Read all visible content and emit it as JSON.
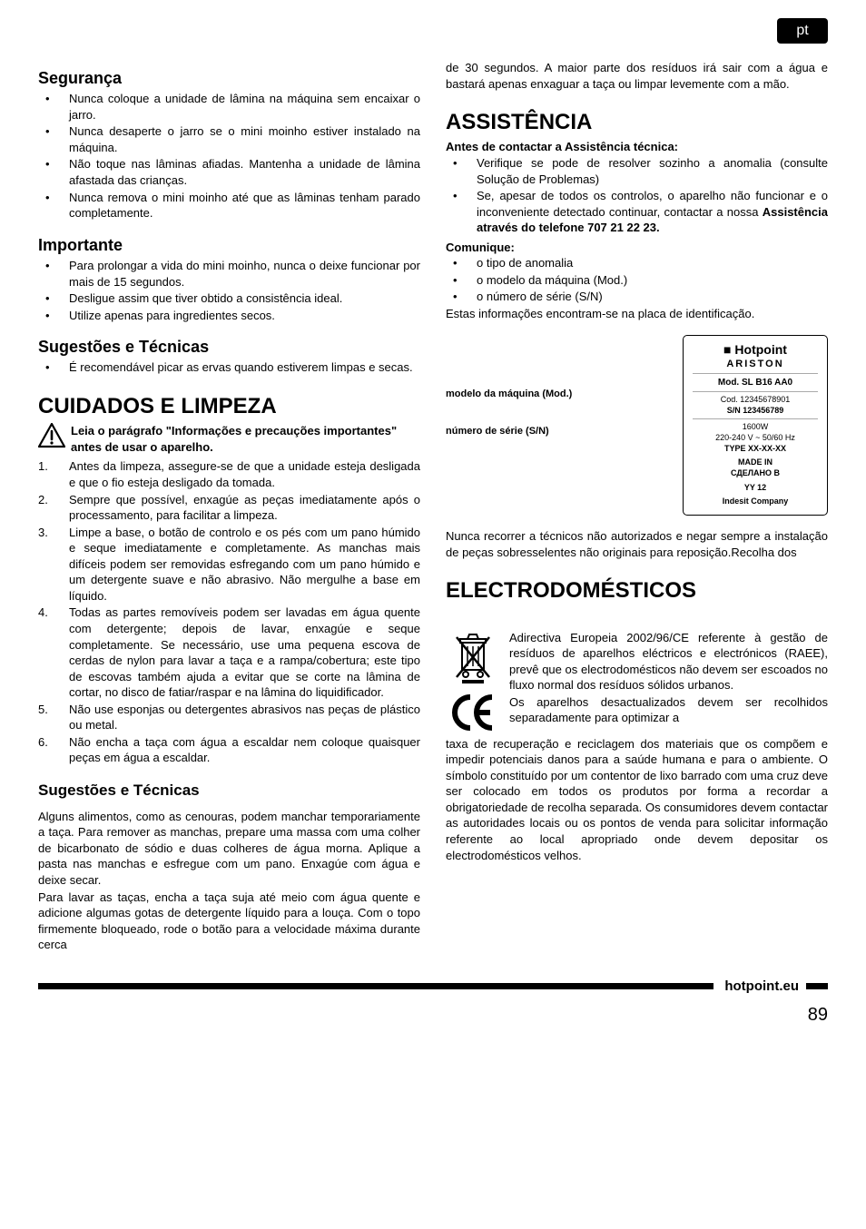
{
  "lang_tab": "pt",
  "left": {
    "seguranca_h": "Segurança",
    "seguranca_items": [
      "Nunca coloque a unidade de lâmina na máquina sem encaixar o jarro.",
      "Nunca desaperte o jarro se o mini moinho estiver instalado na máquina.",
      "Não toque nas lâminas afiadas. Mantenha a unidade de lâmina afastada das crianças.",
      "Nunca remova o mini moinho até que as lâminas tenham parado completamente."
    ],
    "importante_h": "Importante",
    "importante_items": [
      "Para prolongar a vida do mini moinho, nunca o deixe funcionar por mais de 15 segundos.",
      "Desligue assim que tiver obtido a consistência ideal.",
      "Utilize apenas para ingredientes secos."
    ],
    "sug1_h": "Sugestões e Técnicas",
    "sug1_items": [
      "É recomendável picar as ervas quando estiverem limpas e secas."
    ],
    "cuidados_h": "CUIDADOS E LIMPEZA",
    "warn_text": "Leia o parágrafo \"Informações e precauções importantes\" antes de usar o aparelho.",
    "cuidados_list": [
      "Antes da limpeza, assegure-se de que a unidade esteja desligada e que o fio esteja desligado da tomada.",
      "Sempre que possível, enxagúe as peças imediatamente após o processamento, para facilitar a limpeza.",
      "Limpe a base, o botão de controlo e os pés com um pano húmido e seque imediatamente e completamente. As manchas mais difíceis podem ser removidas esfregando com um pano húmido e um detergente suave e não abrasivo. Não mergulhe a base em líquido.",
      "Todas as partes removíveis podem ser lavadas em água quente com detergente; depois de lavar, enxagúe e seque completamente. Se necessário, use uma pequena escova de cerdas de nylon para lavar a taça e a rampa/cobertura; este tipo de escovas também ajuda a evitar que se corte na lâmina de cortar, no disco de fatiar/raspar e na lâmina do liquidificador.",
      "Não use esponjas ou detergentes abrasivos nas peças de plástico ou metal.",
      "Não encha a taça com água a escaldar nem coloque quaisquer peças em água a escaldar."
    ],
    "sug2_h": "Sugestões e Técnicas",
    "sug2_p1": "Alguns alimentos, como as cenouras, podem manchar temporariamente a taça. Para remover as manchas, prepare uma massa com uma colher de bicarbonato de sódio e duas colheres de água morna. Aplique a pasta nas manchas e esfregue com um pano. Enxagúe com água e deixe secar.",
    "sug2_p2": "Para lavar as taças, encha a taça suja até meio com água quente e adicione algumas gotas de detergente líquido para a louça. Com o topo firmemente bloqueado, rode o botão para a velocidade máxima durante cerca"
  },
  "right": {
    "top_cont": "de 30 segundos. A maior parte dos resíduos irá sair com a água e bastará apenas enxaguar a taça ou limpar levemente com a mão.",
    "assist_h": "ASSISTÊNCIA",
    "assist_sub": "Antes de contactar a Assistência técnica:",
    "assist_items": [
      "Verifique se pode de resolver sozinho a anomalia (consulte Solução de Problemas)",
      "Se, apesar de todos os controlos, o aparelho não funcionar e o inconveniente detectado continuar, contactar a nossa <b>Assistência através do telefone 707 21 22 23.</b>"
    ],
    "comunique_h": "Comunique:",
    "comunique_items": [
      "o tipo de anomalia",
      "o modelo da máquina (Mod.)",
      "o número de série (S/N)"
    ],
    "placa_text": "Estas informações encontram-se na placa de identificação.",
    "plate_label_mod": "modelo da máquina (Mod.)",
    "plate_label_sn": "número de série (S/N)",
    "plate": {
      "brand_square": "■",
      "brand": "Hotpoint",
      "ariston": "ARISTON",
      "mod": "Mod. SL B16 AA0",
      "cod": "Cod. 12345678901",
      "sn": "S/N 123456789",
      "watt": "1600W",
      "volt": "220-240 V ~ 50/60 Hz",
      "type": "TYPE XX-XX-XX",
      "made": "MADE IN",
      "made2": "СДЕЛАНО В",
      "yy": "YY 12",
      "company": "Indesit Company"
    },
    "after_plate": "Nunca recorrer a técnicos não autorizados e negar sempre a instalação de peças sobresselentes não originais para reposição.Recolha dos",
    "elec_h": "ELECTRODOMÉSTICOS",
    "elec_body": "Adirectiva Europeia 2002/96/CE referente à gestão de resíduos de aparelhos eléctricos e electrónicos (RAEE), prevê que os electrodomésticos não devem ser escoados no fluxo normal dos resíduos sólidos urbanos.",
    "elec_body2": "Os aparelhos desactualizados devem ser recolhidos separadamente para optimizar a",
    "elec_body3": "taxa de recuperação e reciclagem dos materiais que os compõem e impedir potenciais danos para a saúde humana e para o ambiente. O símbolo constituído por um contentor de lixo barrado com uma cruz deve ser colocado em todos os produtos por forma a recordar a obrigatoriedade de recolha separada. Os consumidores devem contactar as autoridades locais ou os pontos de venda para solicitar informação referente ao local apropriado onde devem depositar os electrodomésticos velhos."
  },
  "footer_host": "hotpoint.eu",
  "page_number": "89"
}
